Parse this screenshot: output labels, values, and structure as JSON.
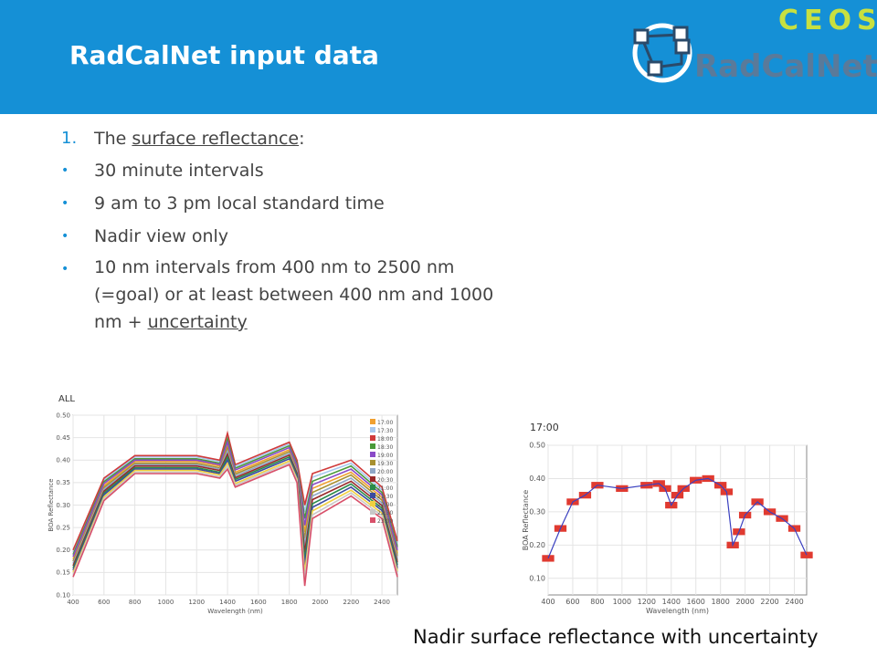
{
  "header": {
    "title": "RadCalNet input data",
    "logo_top": "CEOS",
    "logo_bottom": "RadCalNet"
  },
  "list": {
    "heading": {
      "number": "1.",
      "before": "The ",
      "link": "surface reflectance",
      "after": ":"
    },
    "bullets": [
      {
        "text": "30 minute intervals"
      },
      {
        "text": "9 am to 3 pm local standard time"
      },
      {
        "text": "Nadir view only"
      },
      {
        "text": "10 nm intervals from 400 nm to 2500 nm (=goal) or at least between 400 nm and 1000 nm + ",
        "link": "uncertainty"
      }
    ]
  },
  "chart_data": [
    {
      "type": "line",
      "title": "ALL",
      "x_label": "Wavelength (nm)",
      "y_label": "BOA Reflectance",
      "legend": "top-right",
      "grid": true,
      "xlim": [
        400,
        2500
      ],
      "xticks": [
        400,
        600,
        800,
        1000,
        1200,
        1400,
        1600,
        1800,
        2000,
        2200,
        2400
      ],
      "ylim": [
        0.1,
        0.5
      ],
      "yticks": [
        {
          "value": 0.1,
          "label": "0.10"
        },
        0.15,
        {
          "value": 0.2,
          "label": "0.20"
        },
        0.25,
        {
          "value": 0.3,
          "label": "0.30"
        },
        0.35,
        {
          "value": 0.4,
          "label": "0.40"
        },
        0.45,
        {
          "value": 0.5,
          "label": "0.50"
        }
      ],
      "x": [
        400,
        600,
        800,
        1200,
        1350,
        1400,
        1450,
        1800,
        1850,
        1900,
        1950,
        2200,
        2400,
        2500
      ],
      "series": [
        {
          "name": "17:00",
          "color": "#f0a030",
          "values": [
            0.18,
            0.343,
            0.397,
            0.397,
            0.387,
            0.433,
            0.373,
            0.423,
            0.383,
            0.24,
            0.337,
            0.373,
            0.317,
            0.193
          ]
        },
        {
          "name": "17:30",
          "color": "#a8c8ee",
          "values": [
            0.195,
            0.356,
            0.407,
            0.407,
            0.397,
            0.453,
            0.386,
            0.436,
            0.396,
            0.285,
            0.362,
            0.393,
            0.334,
            0.213
          ]
        },
        {
          "name": "18:00",
          "color": "#d03a3a",
          "values": [
            0.2,
            0.36,
            0.41,
            0.41,
            0.4,
            0.46,
            0.39,
            0.44,
            0.4,
            0.3,
            0.37,
            0.4,
            0.34,
            0.22
          ]
        },
        {
          "name": "18:30",
          "color": "#4a9a3a",
          "values": [
            0.19,
            0.352,
            0.403,
            0.403,
            0.393,
            0.447,
            0.382,
            0.432,
            0.392,
            0.27,
            0.353,
            0.387,
            0.328,
            0.207
          ]
        },
        {
          "name": "19:00",
          "color": "#8a4ac8",
          "values": [
            0.185,
            0.348,
            0.4,
            0.4,
            0.39,
            0.44,
            0.378,
            0.428,
            0.388,
            0.255,
            0.345,
            0.38,
            0.323,
            0.2
          ]
        },
        {
          "name": "19:30",
          "color": "#a89030",
          "values": [
            0.175,
            0.339,
            0.393,
            0.393,
            0.383,
            0.427,
            0.369,
            0.419,
            0.379,
            0.225,
            0.328,
            0.367,
            0.311,
            0.187
          ]
        },
        {
          "name": "20:00",
          "color": "#90a8c8",
          "values": [
            0.17,
            0.335,
            0.39,
            0.39,
            0.38,
            0.42,
            0.365,
            0.415,
            0.375,
            0.21,
            0.32,
            0.36,
            0.305,
            0.18
          ]
        },
        {
          "name": "20:30",
          "color": "#9a2a2a",
          "values": [
            0.165,
            0.331,
            0.387,
            0.387,
            0.377,
            0.413,
            0.361,
            0.411,
            0.371,
            0.195,
            0.312,
            0.353,
            0.299,
            0.173
          ]
        },
        {
          "name": "21:00",
          "color": "#2a8a4a",
          "values": [
            0.16,
            0.327,
            0.383,
            0.383,
            0.373,
            0.407,
            0.357,
            0.407,
            0.367,
            0.18,
            0.303,
            0.347,
            0.293,
            0.167
          ]
        },
        {
          "name": "21:30",
          "color": "#3a4aa0",
          "values": [
            0.155,
            0.323,
            0.38,
            0.38,
            0.37,
            0.4,
            0.353,
            0.403,
            0.363,
            0.165,
            0.295,
            0.34,
            0.288,
            0.16
          ]
        },
        {
          "name": "22:00",
          "color": "#f0d040",
          "values": [
            0.15,
            0.318,
            0.377,
            0.377,
            0.367,
            0.393,
            0.348,
            0.398,
            0.358,
            0.15,
            0.287,
            0.333,
            0.282,
            0.153
          ]
        },
        {
          "name": "22:30",
          "color": "#c8c8c8",
          "values": [
            0.145,
            0.314,
            0.373,
            0.373,
            0.363,
            0.387,
            0.344,
            0.394,
            0.354,
            0.135,
            0.278,
            0.327,
            0.276,
            0.147
          ]
        },
        {
          "name": "23:00",
          "color": "#d8506a",
          "values": [
            0.14,
            0.31,
            0.37,
            0.37,
            0.36,
            0.38,
            0.34,
            0.39,
            0.35,
            0.12,
            0.27,
            0.32,
            0.27,
            0.14
          ]
        }
      ]
    },
    {
      "type": "line",
      "title": "17:00",
      "x_label": "Wavelength (nm)",
      "y_label": "BOA Reflectance",
      "grid": true,
      "xlim": [
        400,
        2500
      ],
      "xticks": [
        400,
        600,
        800,
        1000,
        1200,
        1400,
        1600,
        1800,
        2000,
        2200,
        2400
      ],
      "ylim": [
        0.05,
        0.5
      ],
      "yticks": [
        {
          "value": 0.1,
          "label": "0.10"
        },
        {
          "value": 0.2,
          "label": "0.20"
        },
        {
          "value": 0.3,
          "label": "0.30"
        },
        {
          "value": 0.4,
          "label": "0.40"
        },
        {
          "value": 0.5,
          "label": "0.50"
        }
      ],
      "x": [
        400,
        500,
        600,
        700,
        800,
        1000,
        1200,
        1300,
        1350,
        1400,
        1450,
        1500,
        1600,
        1700,
        1800,
        1850,
        1900,
        1950,
        2000,
        2100,
        2200,
        2300,
        2400,
        2500
      ],
      "uncertainty": 0.01,
      "uncertainty_color": "#e03a30",
      "series": [
        {
          "name": "17:00",
          "color": "#3a40c0",
          "values": [
            0.16,
            0.25,
            0.33,
            0.35,
            0.38,
            0.37,
            0.38,
            0.385,
            0.37,
            0.32,
            0.35,
            0.37,
            0.395,
            0.4,
            0.38,
            0.36,
            0.2,
            0.24,
            0.29,
            0.33,
            0.3,
            0.28,
            0.25,
            0.17
          ]
        }
      ]
    }
  ],
  "caption": "Nadir surface reflectance with uncertainty"
}
